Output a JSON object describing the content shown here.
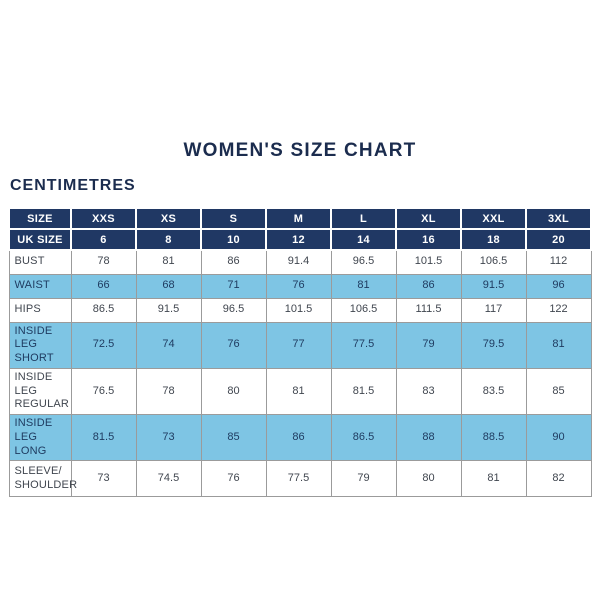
{
  "page": {
    "title": "WOMEN'S SIZE CHART",
    "subtitle": "CENTIMETRES"
  },
  "colors": {
    "header_bg": "#203864",
    "alt_row_bg": "#7ec5e4",
    "header_text": "#ffffff",
    "body_text": "#40464f",
    "alt_row_text": "#1e3a5f",
    "title_text": "#1b2c4e",
    "border": "#9b9b9b"
  },
  "chart_data": {
    "type": "table",
    "title": "WOMEN'S SIZE CHART",
    "units_label": "CENTIMETRES",
    "header_rows": [
      {
        "label": "SIZE",
        "values": [
          "XXS",
          "XS",
          "S",
          "M",
          "L",
          "XL",
          "XXL",
          "3XL"
        ]
      },
      {
        "label": "UK SIZE",
        "values": [
          "6",
          "8",
          "10",
          "12",
          "14",
          "16",
          "18",
          "20"
        ]
      }
    ],
    "rows": [
      {
        "label": "BUST",
        "values": [
          "78",
          "81",
          "86",
          "91.4",
          "96.5",
          "101.5",
          "106.5",
          "112"
        ]
      },
      {
        "label": "WAIST",
        "values": [
          "66",
          "68",
          "71",
          "76",
          "81",
          "86",
          "91.5",
          "96"
        ]
      },
      {
        "label": "HIPS",
        "values": [
          "86.5",
          "91.5",
          "96.5",
          "101.5",
          "106.5",
          "111.5",
          "117",
          "122"
        ]
      },
      {
        "label": "INSIDE LEG SHORT",
        "values": [
          "72.5",
          "74",
          "76",
          "77",
          "77.5",
          "79",
          "79.5",
          "81"
        ]
      },
      {
        "label": "INSIDE LEG REGULAR",
        "values": [
          "76.5",
          "78",
          "80",
          "81",
          "81.5",
          "83",
          "83.5",
          "85"
        ]
      },
      {
        "label": "INSIDE LEG LONG",
        "values": [
          "81.5",
          "73",
          "85",
          "86",
          "86.5",
          "88",
          "88.5",
          "90"
        ]
      },
      {
        "label": "SLEEVE/ SHOULDER",
        "values": [
          "73",
          "74.5",
          "76",
          "77.5",
          "79",
          "80",
          "81",
          "82"
        ]
      }
    ]
  }
}
